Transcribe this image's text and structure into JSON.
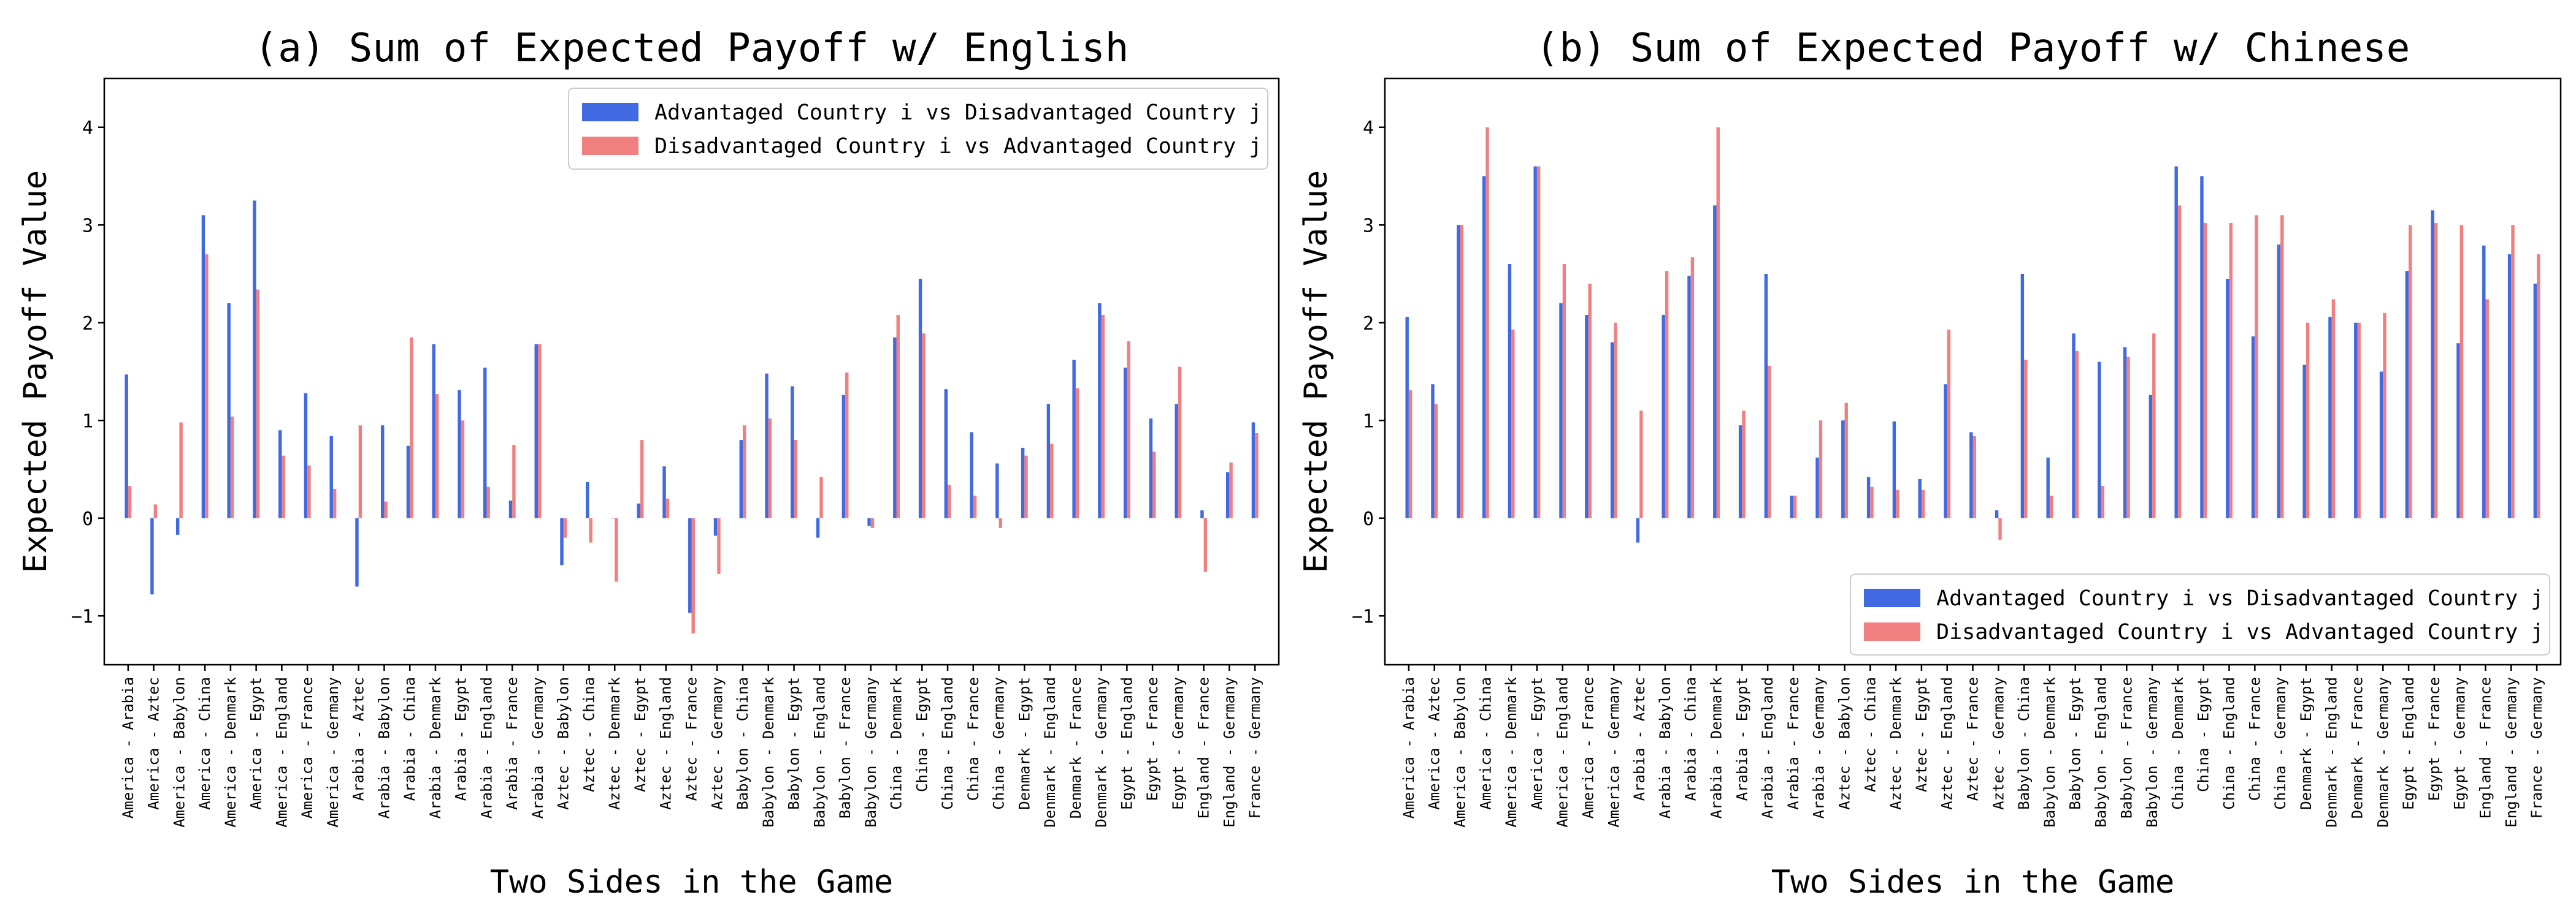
{
  "colors": {
    "advantaged": "#4169e1",
    "disadvantaged": "#f08080"
  },
  "chart_data": [
    {
      "type": "bar",
      "title": "(a) Sum of Expected Payoff w/ English",
      "xlabel": "Two Sides in the Game",
      "ylabel": "Expected Payoff Value",
      "ylim": [
        -1.5,
        4.5
      ],
      "yticks": [
        "−1",
        "0",
        "1",
        "2",
        "3",
        "4"
      ],
      "legend_position": "upper right",
      "categories": [
        "America - Arabia",
        "America - Aztec",
        "America - Babylon",
        "America - China",
        "America - Denmark",
        "America - Egypt",
        "America - England",
        "America - France",
        "America - Germany",
        "Arabia - Aztec",
        "Arabia - Babylon",
        "Arabia - China",
        "Arabia - Denmark",
        "Arabia - Egypt",
        "Arabia - England",
        "Arabia - France",
        "Arabia - Germany",
        "Aztec - Babylon",
        "Aztec - China",
        "Aztec - Denmark",
        "Aztec - Egypt",
        "Aztec - England",
        "Aztec - France",
        "Aztec - Germany",
        "Babylon - China",
        "Babylon - Denmark",
        "Babylon - Egypt",
        "Babylon - England",
        "Babylon - France",
        "Babylon - Germany",
        "China - Denmark",
        "China - Egypt",
        "China - England",
        "China - France",
        "China - Germany",
        "Denmark - Egypt",
        "Denmark - England",
        "Denmark - France",
        "Denmark - Germany",
        "Egypt - England",
        "Egypt - France",
        "Egypt - Germany",
        "England - France",
        "England - Germany",
        "France - Germany"
      ],
      "series": [
        {
          "name": "Advantaged Country i vs Disadvantaged Country j",
          "values": [
            1.47,
            -0.78,
            -0.17,
            3.1,
            2.2,
            3.25,
            0.9,
            1.28,
            0.84,
            -0.7,
            0.95,
            0.74,
            1.78,
            1.31,
            1.54,
            0.18,
            1.78,
            -0.48,
            0.37,
            0.0,
            0.15,
            0.53,
            -0.97,
            -0.18,
            0.8,
            1.48,
            1.35,
            -0.2,
            1.26,
            -0.08,
            1.85,
            2.45,
            1.32,
            0.88,
            0.56,
            0.72,
            1.17,
            1.62,
            2.2,
            1.54,
            1.02,
            1.17,
            0.08,
            0.47,
            0.98
          ]
        },
        {
          "name": "Disadvantaged Country i vs Advantaged Country j",
          "values": [
            0.33,
            0.14,
            0.98,
            2.7,
            1.04,
            2.34,
            0.64,
            0.54,
            0.3,
            0.95,
            0.17,
            1.85,
            1.27,
            1.0,
            0.32,
            0.75,
            1.78,
            -0.2,
            -0.25,
            -0.65,
            0.8,
            0.2,
            -1.18,
            -0.57,
            0.95,
            1.02,
            0.8,
            0.42,
            1.49,
            -0.1,
            2.08,
            1.89,
            0.34,
            0.23,
            -0.1,
            0.64,
            0.76,
            1.33,
            2.08,
            1.81,
            0.68,
            1.55,
            -0.55,
            0.57,
            0.87
          ]
        }
      ]
    },
    {
      "type": "bar",
      "title": "(b) Sum of Expected Payoff w/ Chinese",
      "xlabel": "Two Sides in the Game",
      "ylabel": "Expected Payoff Value",
      "ylim": [
        -1.5,
        4.5
      ],
      "yticks": [
        "−1",
        "0",
        "1",
        "2",
        "3",
        "4"
      ],
      "legend_position": "lower right",
      "categories": [
        "America - Arabia",
        "America - Aztec",
        "America - Babylon",
        "America - China",
        "America - Denmark",
        "America - Egypt",
        "America - England",
        "America - France",
        "America - Germany",
        "Arabia - Aztec",
        "Arabia - Babylon",
        "Arabia - China",
        "Arabia - Denmark",
        "Arabia - Egypt",
        "Arabia - England",
        "Arabia - France",
        "Arabia - Germany",
        "Aztec - Babylon",
        "Aztec - China",
        "Aztec - Denmark",
        "Aztec - Egypt",
        "Aztec - England",
        "Aztec - France",
        "Aztec - Germany",
        "Babylon - China",
        "Babylon - Denmark",
        "Babylon - Egypt",
        "Babylon - England",
        "Babylon - France",
        "Babylon - Germany",
        "China - Denmark",
        "China - Egypt",
        "China - England",
        "China - France",
        "China - Germany",
        "Denmark - Egypt",
        "Denmark - England",
        "Denmark - France",
        "Denmark - Germany",
        "Egypt - England",
        "Egypt - France",
        "Egypt - Germany",
        "England - France",
        "England - Germany",
        "France - Germany"
      ],
      "series": [
        {
          "name": "Advantaged Country i vs Disadvantaged Country j",
          "values": [
            2.06,
            1.37,
            3.0,
            3.5,
            2.6,
            3.6,
            2.2,
            2.08,
            1.8,
            -0.25,
            2.08,
            2.48,
            3.2,
            0.95,
            2.5,
            0.23,
            0.62,
            1.0,
            0.42,
            0.99,
            0.4,
            1.37,
            0.88,
            0.08,
            2.5,
            0.62,
            1.89,
            1.6,
            1.75,
            1.26,
            3.6,
            3.5,
            2.45,
            1.86,
            2.8,
            1.57,
            2.06,
            2.0,
            1.5,
            2.53,
            3.15,
            1.79,
            2.79,
            2.7,
            2.4
          ]
        },
        {
          "name": "Disadvantaged Country i vs Advantaged Country j",
          "values": [
            1.31,
            1.17,
            3.0,
            4.0,
            1.93,
            3.6,
            2.6,
            2.4,
            2.0,
            1.1,
            2.53,
            2.67,
            4.0,
            1.1,
            1.56,
            0.23,
            1.0,
            1.18,
            0.32,
            0.29,
            0.29,
            1.93,
            0.84,
            -0.22,
            1.62,
            0.23,
            1.71,
            0.33,
            1.65,
            1.89,
            3.2,
            3.02,
            3.02,
            3.1,
            3.1,
            2.0,
            2.24,
            2.0,
            2.1,
            3.0,
            3.02,
            3.0,
            2.24,
            3.0,
            2.7
          ]
        }
      ]
    }
  ]
}
